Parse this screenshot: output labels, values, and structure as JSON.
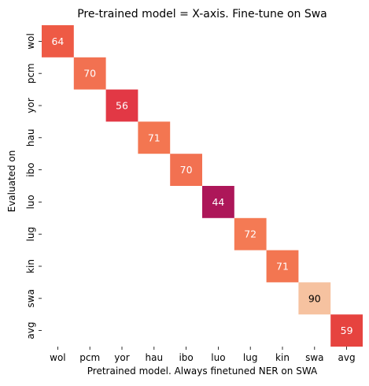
{
  "chart_data": {
    "type": "heatmap",
    "title": "Pre-trained model = X-axis. Fine-tune on Swa",
    "xlabel": "Pretrained model. Always finetuned NER on SWA",
    "ylabel": "Evaluated on",
    "x_categories": [
      "wol",
      "pcm",
      "yor",
      "hau",
      "ibo",
      "luo",
      "lug",
      "kin",
      "swa",
      "avg"
    ],
    "y_categories": [
      "wol",
      "pcm",
      "yor",
      "hau",
      "ibo",
      "luo",
      "lug",
      "kin",
      "swa",
      "avg"
    ],
    "cells": [
      {
        "x": "wol",
        "y": "wol",
        "value": 64,
        "color": "#ee5a45",
        "text_color": "#ffffff"
      },
      {
        "x": "pcm",
        "y": "pcm",
        "value": 70,
        "color": "#f27151",
        "text_color": "#ffffff"
      },
      {
        "x": "yor",
        "y": "yor",
        "value": 56,
        "color": "#e23845",
        "text_color": "#ffffff"
      },
      {
        "x": "hau",
        "y": "hau",
        "value": 71,
        "color": "#f37651",
        "text_color": "#ffffff"
      },
      {
        "x": "ibo",
        "y": "ibo",
        "value": 70,
        "color": "#f27151",
        "text_color": "#ffffff"
      },
      {
        "x": "luo",
        "y": "luo",
        "value": 44,
        "color": "#ad1759",
        "text_color": "#ffffff"
      },
      {
        "x": "lug",
        "y": "lug",
        "value": 72,
        "color": "#f47a54",
        "text_color": "#ffffff"
      },
      {
        "x": "kin",
        "y": "kin",
        "value": 71,
        "color": "#f37651",
        "text_color": "#ffffff"
      },
      {
        "x": "swa",
        "y": "swa",
        "value": 90,
        "color": "#f6c2a0",
        "text_color": "#000000"
      },
      {
        "x": "avg",
        "y": "avg",
        "value": 59,
        "color": "#e6433f",
        "text_color": "#ffffff"
      }
    ],
    "colorbar": false,
    "grid": false
  }
}
